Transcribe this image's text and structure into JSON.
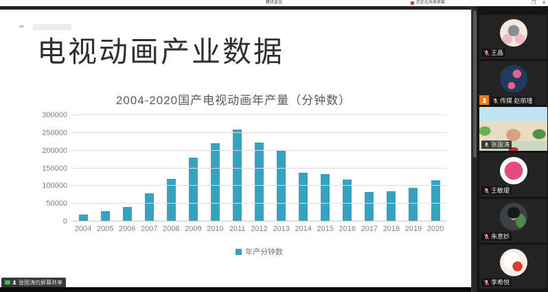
{
  "meeting": {
    "window_title": "腾讯会议",
    "share_indicator_label": "您正在共享屏幕",
    "window_controls": {
      "maximize": "❐",
      "close": "✕"
    },
    "share_badge_label": "张国涛的屏幕共享"
  },
  "slide": {
    "title": "电视动画产业数据",
    "accent_red": "#da1f2c",
    "accent_teal": "#2e9fb8"
  },
  "chart_data": {
    "type": "bar",
    "title": "2004-2020国产电视动画年产量（分钟数）",
    "categories": [
      "2004",
      "2005",
      "2006",
      "2007",
      "2008",
      "2009",
      "2010",
      "2011",
      "2012",
      "2013",
      "2014",
      "2015",
      "2016",
      "2017",
      "2018",
      "2019",
      "2020"
    ],
    "values": [
      20000,
      30000,
      40000,
      80000,
      120000,
      180000,
      220000,
      260000,
      222000,
      200000,
      138000,
      133000,
      119000,
      83000,
      86000,
      94000,
      117000
    ],
    "legend": "年产分钟数",
    "xlabel": "",
    "ylabel": "",
    "ylim": [
      0,
      300000
    ],
    "ytick_step": 50000,
    "grid": true,
    "legend_position": "bottom",
    "bar_color": "#38a3bf"
  },
  "participants": [
    {
      "name": "王晶",
      "mic": "muted",
      "badge": false,
      "active": false,
      "avatar": "av1"
    },
    {
      "name": "传媒 赵丽瑾",
      "mic": "muted",
      "badge": true,
      "active": false,
      "avatar": "av2"
    },
    {
      "name": "张国涛",
      "mic": "on",
      "badge": false,
      "active": true,
      "avatar": "video"
    },
    {
      "name": "王敏瑷",
      "mic": "muted",
      "badge": false,
      "active": false,
      "avatar": "av4"
    },
    {
      "name": "朱意妙",
      "mic": "muted",
      "badge": false,
      "active": false,
      "avatar": "av5"
    },
    {
      "name": "李希悦",
      "mic": "muted",
      "badge": false,
      "active": false,
      "avatar": "av6"
    }
  ]
}
